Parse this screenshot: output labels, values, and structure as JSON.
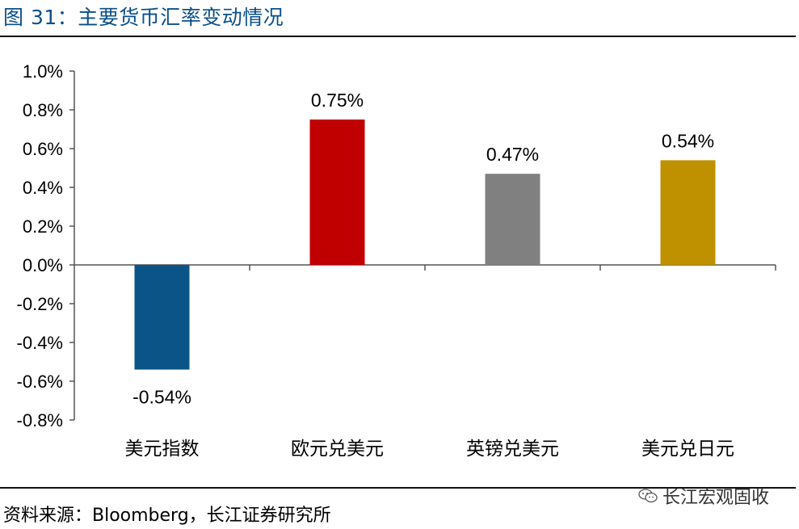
{
  "figure": {
    "title": "图 31：主要货币汇率变动情况",
    "source": "资料来源：Bloomberg，长江证券研究所",
    "watermark": "长江宏观固收",
    "watermark_icon": "wechat-icon"
  },
  "chart_data": {
    "type": "bar",
    "categories": [
      "美元指数",
      "欧元兑美元",
      "英镑兑美元",
      "美元兑日元"
    ],
    "values": [
      -0.54,
      0.75,
      0.47,
      0.54
    ],
    "data_labels": [
      "-0.54%",
      "0.75%",
      "0.47%",
      "0.54%"
    ],
    "colors": [
      "#0a5488",
      "#c00000",
      "#808080",
      "#bf9000"
    ],
    "ylim": [
      -0.8,
      1.0
    ],
    "yticks": [
      1.0,
      0.8,
      0.6,
      0.4,
      0.2,
      0.0,
      -0.2,
      -0.4,
      -0.6,
      -0.8
    ],
    "ytick_labels": [
      "1.0%",
      "0.8%",
      "0.6%",
      "0.4%",
      "0.2%",
      "0.0%",
      "-0.2%",
      "-0.4%",
      "-0.6%",
      "-0.8%"
    ],
    "grid": false,
    "legend": "none"
  }
}
